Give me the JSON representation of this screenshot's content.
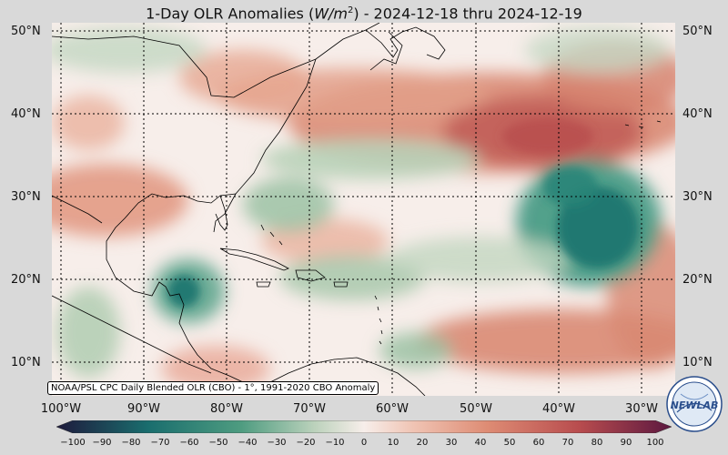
{
  "title": {
    "prefix": "1-Day OLR Anomalies (",
    "unit_base": "W/m",
    "unit_exp": "2",
    "suffix": ") - 2024-12-18 thru 2024-12-19"
  },
  "attribution": "NOAA/PSL CPC Daily Blended OLR (CBO) - 1°, 1991-2020 CBO Anomaly",
  "lat_labels": [
    "50°N",
    "40°N",
    "30°N",
    "20°N",
    "10°N"
  ],
  "lat_labels_right": [
    "50°N",
    "40°N",
    "30°N",
    "20°N",
    "10°N"
  ],
  "lon_labels": [
    "100°W",
    "90°W",
    "80°W",
    "70°W",
    "60°W",
    "50°W",
    "40°W",
    "30°W"
  ],
  "colorbar": {
    "ticks": [
      "−100",
      "−90",
      "−80",
      "−70",
      "−60",
      "−50",
      "−40",
      "−30",
      "−20",
      "−10",
      "0",
      "10",
      "20",
      "30",
      "40",
      "50",
      "60",
      "70",
      "80",
      "90",
      "100"
    ],
    "colors": {
      "neg_extreme": "#1e1a3c",
      "neg_strong": "#1a6e6e",
      "neg_mid": "#4e9c80",
      "neg_light": "#bcd2bc",
      "neutral": "#f7eeea",
      "pos_light": "#f0c4b4",
      "pos_mid": "#de8c74",
      "pos_strong": "#b84c4e",
      "pos_extreme": "#5c1840"
    }
  },
  "map": {
    "extent": {
      "lon_min": -101,
      "lon_max": -26,
      "lat_min": 6,
      "lat_max": 51
    },
    "gridlines": "dotted"
  },
  "logo": {
    "text": "NEWLAB"
  }
}
